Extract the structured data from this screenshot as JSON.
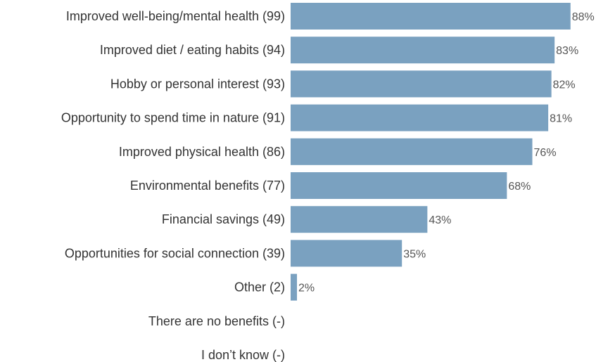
{
  "chart_data": {
    "type": "bar",
    "orientation": "horizontal",
    "categories": [
      "Improved well-being/mental health (99)",
      "Improved diet / eating habits (94)",
      "Hobby or personal interest (93)",
      "Opportunity to spend time in nature (91)",
      "Improved physical health (86)",
      "Environmental benefits (77)",
      "Financial savings (49)",
      "Opportunities for social connection (39)",
      "Other (2)",
      "There are no benefits (-)",
      "I don’t know (-)"
    ],
    "values": [
      88,
      83,
      82,
      81,
      76,
      68,
      43,
      35,
      2,
      null,
      null
    ],
    "value_labels": [
      "88%",
      "83%",
      "82%",
      "81%",
      "76%",
      "68%",
      "43%",
      "35%",
      "2%",
      "",
      ""
    ],
    "title": "",
    "xlabel": "",
    "ylabel": "",
    "xlim": [
      0,
      100
    ],
    "grid": false,
    "legend": "none",
    "bar_color": "#7aa1c0"
  }
}
